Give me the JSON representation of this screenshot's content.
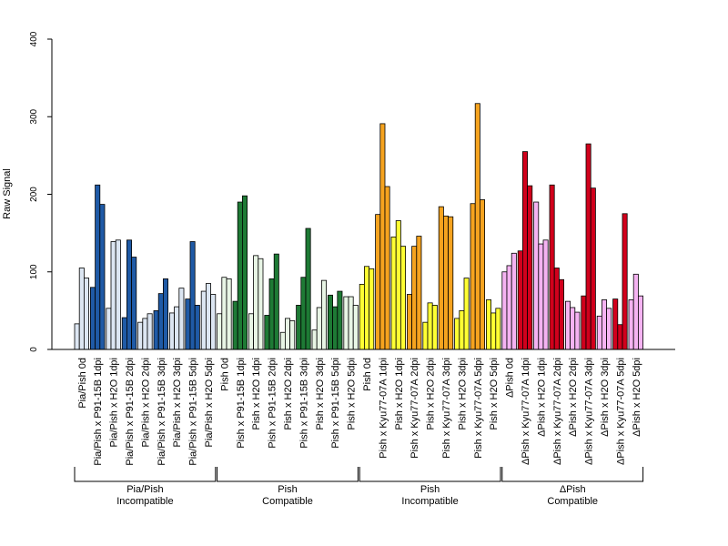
{
  "chart_data": {
    "type": "bar",
    "ylabel": "Raw Signal",
    "ylim": [
      0,
      400
    ],
    "yticks": [
      "0",
      "100",
      "200",
      "300",
      "400"
    ],
    "replicates": 3,
    "categories": [
      {
        "label": "Pia/Pish 0d",
        "color": "#dce6f2",
        "values": [
          33,
          105,
          92
        ]
      },
      {
        "label": "Pia/Pish x P91-15B 1dpi",
        "color": "#1f5aa6",
        "values": [
          80,
          212,
          187
        ]
      },
      {
        "label": "Pia/Pish x H2O 1dpi",
        "color": "#dce6f2",
        "values": [
          53,
          139,
          141
        ]
      },
      {
        "label": "Pia/Pish x P91-15B 2dpi",
        "color": "#1f5aa6",
        "values": [
          41,
          141,
          119
        ]
      },
      {
        "label": "Pia/Pish x H2O 2dpi",
        "color": "#dce6f2",
        "values": [
          35,
          40,
          46
        ]
      },
      {
        "label": "Pia/Pish x P91-15B 3dpi",
        "color": "#1f5aa6",
        "values": [
          50,
          72,
          91
        ]
      },
      {
        "label": "Pia/Pish x H2O 3dpi",
        "color": "#dce6f2",
        "values": [
          47,
          55,
          79
        ]
      },
      {
        "label": "Pia/Pish x P91-15B 5dpi",
        "color": "#1f5aa6",
        "values": [
          65,
          139,
          57
        ]
      },
      {
        "label": "Pia/Pish x H2O 5dpi",
        "color": "#dce6f2",
        "values": [
          75,
          85,
          71
        ]
      },
      {
        "label": "Pish 0d",
        "color": "#e8f5e5",
        "values": [
          46,
          93,
          91
        ]
      },
      {
        "label": "Pish x P91-15B 1dpi",
        "color": "#1e7a35",
        "values": [
          62,
          190,
          198
        ]
      },
      {
        "label": "Pish x H2O 1dpi",
        "color": "#e8f5e5",
        "values": [
          46,
          121,
          117
        ]
      },
      {
        "label": "Pish x P91-15B 2dpi",
        "color": "#1e7a35",
        "values": [
          44,
          91,
          123
        ]
      },
      {
        "label": "Pish x H2O 2dpi",
        "color": "#e8f5e5",
        "values": [
          22,
          40,
          37
        ]
      },
      {
        "label": "Pish x P91-15B 3dpi",
        "color": "#1e7a35",
        "values": [
          57,
          93,
          156
        ]
      },
      {
        "label": "Pish x H2O 3dpi",
        "color": "#e8f5e5",
        "values": [
          25,
          54,
          89
        ]
      },
      {
        "label": "Pish x P91-15B 5dpi",
        "color": "#1e7a35",
        "values": [
          70,
          55,
          75
        ]
      },
      {
        "label": "Pish x H2O 5dpi",
        "color": "#e8f5e5",
        "values": [
          68,
          68,
          57
        ]
      },
      {
        "label": "Pish 0d",
        "color": "#ffff33",
        "values": [
          84,
          107,
          104
        ]
      },
      {
        "label": "Pish x Kyu77-07A 1dpi",
        "color": "#f5a31f",
        "values": [
          174,
          291,
          210
        ]
      },
      {
        "label": "Pish x H2O 1dpi",
        "color": "#ffff33",
        "values": [
          145,
          166,
          133
        ]
      },
      {
        "label": "Pish x Kyu77-07A 2dpi",
        "color": "#f5a31f",
        "values": [
          71,
          133,
          146
        ]
      },
      {
        "label": "Pish x H2O 2dpi",
        "color": "#ffff33",
        "values": [
          35,
          60,
          57
        ]
      },
      {
        "label": "Pish x Kyu77-07A 3dpi",
        "color": "#f5a31f",
        "values": [
          184,
          172,
          171
        ]
      },
      {
        "label": "Pish x H2O 3dpi",
        "color": "#ffff33",
        "values": [
          40,
          50,
          92
        ]
      },
      {
        "label": "Pish x Kyu77-07A 5dpi",
        "color": "#f5a31f",
        "values": [
          188,
          317,
          193
        ]
      },
      {
        "label": "Pish x H2O 5dpi",
        "color": "#ffff33",
        "values": [
          64,
          47,
          53
        ]
      },
      {
        "label": "ΔPish 0d",
        "color": "#f5b3f2",
        "values": [
          100,
          108,
          124
        ]
      },
      {
        "label": "ΔPish x Kyu77-07A 1dpi",
        "color": "#d1001c",
        "values": [
          127,
          255,
          211
        ]
      },
      {
        "label": "ΔPish x H2O 1dpi",
        "color": "#f5b3f2",
        "values": [
          190,
          136,
          141
        ]
      },
      {
        "label": "ΔPish x Kyu77-07A 2dpi",
        "color": "#d1001c",
        "values": [
          212,
          105,
          90
        ]
      },
      {
        "label": "ΔPish x H2O 2dpi",
        "color": "#f5b3f2",
        "values": [
          62,
          54,
          48
        ]
      },
      {
        "label": "ΔPish x Kyu77-07A 3dpi",
        "color": "#d1001c",
        "values": [
          69,
          265,
          208
        ]
      },
      {
        "label": "ΔPish x H2O 3dpi",
        "color": "#f5b3f2",
        "values": [
          43,
          64,
          53
        ]
      },
      {
        "label": "ΔPish x Kyu77-07A 5dpi",
        "color": "#d1001c",
        "values": [
          65,
          32,
          175
        ]
      },
      {
        "label": "ΔPish x H2O 5dpi",
        "color": "#f5b3f2",
        "values": [
          64,
          97,
          69
        ]
      }
    ],
    "groups": [
      {
        "line1": "Pia/Pish",
        "line2": "Incompatible",
        "first": 0,
        "last": 8
      },
      {
        "line1": "Pish",
        "line2": "Compatible",
        "first": 9,
        "last": 17
      },
      {
        "line1": "Pish",
        "line2": "Incompatible",
        "first": 18,
        "last": 26
      },
      {
        "line1": "ΔPish",
        "line2": "Compatible",
        "first": 27,
        "last": 35
      }
    ]
  }
}
